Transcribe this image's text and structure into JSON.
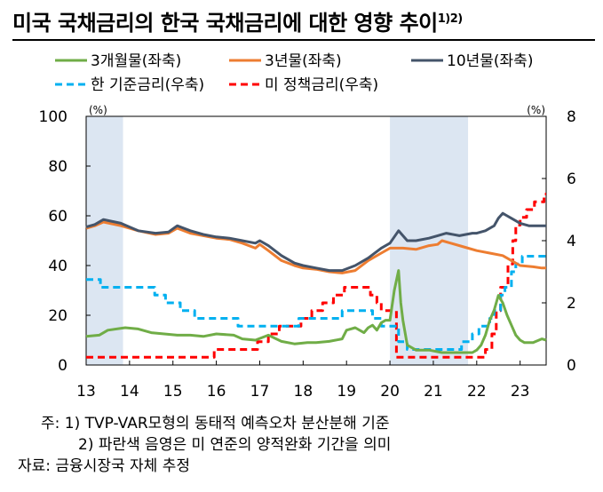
{
  "title": "미국 국채금리의 한국 국채금리에 대한 영향 추이",
  "title_sup": "1)2)",
  "notes": {
    "note1": "주:  1) TVP-VAR모형의 동태적 예측오차 분산분해 기준",
    "note2": "2) 파란색 음영은 미 연준의 양적완화 기간을 의미",
    "source": "자료:  금융시장국 자체 추정"
  },
  "chart_data": {
    "type": "line",
    "title": "미국 국채금리의 한국 국채금리에 대한 영향 추이",
    "left_axis": {
      "unit": "(%)",
      "ylim": [
        0,
        100
      ],
      "ticks": [
        0,
        20,
        40,
        60,
        80,
        100
      ]
    },
    "right_axis": {
      "unit": "(%)",
      "ylim": [
        0,
        8
      ],
      "ticks": [
        0,
        2,
        4,
        6,
        8
      ]
    },
    "x_axis": {
      "xlim": [
        2013.0,
        2023.6
      ],
      "ticks": [
        13,
        14,
        15,
        16,
        17,
        18,
        19,
        20,
        21,
        22,
        23
      ]
    },
    "shading": [
      {
        "from": 2013.0,
        "to": 2013.85
      },
      {
        "from": 2020.0,
        "to": 2021.8
      }
    ],
    "grid": false,
    "legend": "top",
    "series": [
      {
        "name": "3개월물(좌축)",
        "axis": "left",
        "color": "#70ad47",
        "style": "solid",
        "points": [
          [
            2013.0,
            11.5
          ],
          [
            2013.3,
            12
          ],
          [
            2013.5,
            14
          ],
          [
            2013.9,
            15
          ],
          [
            2014.2,
            14.5
          ],
          [
            2014.5,
            13
          ],
          [
            2014.8,
            12.5
          ],
          [
            2015.1,
            12
          ],
          [
            2015.4,
            12
          ],
          [
            2015.7,
            11.5
          ],
          [
            2016.0,
            12.5
          ],
          [
            2016.4,
            12
          ],
          [
            2016.6,
            10.5
          ],
          [
            2016.9,
            10
          ],
          [
            2017.2,
            12
          ],
          [
            2017.5,
            9.5
          ],
          [
            2017.8,
            8.5
          ],
          [
            2018.1,
            9
          ],
          [
            2018.3,
            9
          ],
          [
            2018.6,
            9.5
          ],
          [
            2018.9,
            10.5
          ],
          [
            2019.0,
            14
          ],
          [
            2019.2,
            15
          ],
          [
            2019.4,
            13
          ],
          [
            2019.5,
            15
          ],
          [
            2019.6,
            16
          ],
          [
            2019.7,
            14
          ],
          [
            2019.8,
            17
          ],
          [
            2019.9,
            18
          ],
          [
            2020.0,
            18
          ],
          [
            2020.1,
            30
          ],
          [
            2020.2,
            38
          ],
          [
            2020.25,
            25
          ],
          [
            2020.3,
            18
          ],
          [
            2020.4,
            8
          ],
          [
            2020.6,
            6
          ],
          [
            2020.9,
            6
          ],
          [
            2021.2,
            5
          ],
          [
            2021.6,
            5
          ],
          [
            2021.9,
            5
          ],
          [
            2022.0,
            6
          ],
          [
            2022.1,
            8
          ],
          [
            2022.2,
            12
          ],
          [
            2022.3,
            18
          ],
          [
            2022.4,
            22
          ],
          [
            2022.5,
            28
          ],
          [
            2022.6,
            25
          ],
          [
            2022.7,
            20
          ],
          [
            2022.8,
            16
          ],
          [
            2022.9,
            12
          ],
          [
            2023.0,
            10
          ],
          [
            2023.1,
            9
          ],
          [
            2023.3,
            9
          ],
          [
            2023.5,
            10.5
          ],
          [
            2023.6,
            10
          ]
        ]
      },
      {
        "name": "3년물(좌축)",
        "axis": "left",
        "color": "#ed7d31",
        "style": "solid",
        "points": [
          [
            2013.0,
            55
          ],
          [
            2013.2,
            56
          ],
          [
            2013.4,
            57.5
          ],
          [
            2013.8,
            56
          ],
          [
            2014.2,
            54
          ],
          [
            2014.6,
            52.5
          ],
          [
            2014.9,
            53
          ],
          [
            2015.1,
            55
          ],
          [
            2015.4,
            53
          ],
          [
            2015.7,
            52
          ],
          [
            2016.0,
            51
          ],
          [
            2016.3,
            50.5
          ],
          [
            2016.6,
            49
          ],
          [
            2016.9,
            47
          ],
          [
            2017.0,
            48.5
          ],
          [
            2017.2,
            46
          ],
          [
            2017.5,
            42
          ],
          [
            2017.8,
            40
          ],
          [
            2018.0,
            39
          ],
          [
            2018.3,
            38.5
          ],
          [
            2018.6,
            37.5
          ],
          [
            2018.9,
            37
          ],
          [
            2019.2,
            38
          ],
          [
            2019.5,
            42
          ],
          [
            2019.8,
            45
          ],
          [
            2020.0,
            47
          ],
          [
            2020.3,
            47
          ],
          [
            2020.6,
            46.5
          ],
          [
            2020.9,
            48
          ],
          [
            2021.1,
            48.5
          ],
          [
            2021.2,
            50
          ],
          [
            2021.4,
            49
          ],
          [
            2021.7,
            47.5
          ],
          [
            2022.0,
            46
          ],
          [
            2022.3,
            45
          ],
          [
            2022.6,
            44
          ],
          [
            2022.8,
            42
          ],
          [
            2023.0,
            40
          ],
          [
            2023.3,
            39.5
          ],
          [
            2023.5,
            39
          ],
          [
            2023.6,
            39
          ]
        ]
      },
      {
        "name": "10년물(좌축)",
        "axis": "left",
        "color": "#44546a",
        "style": "solid",
        "points": [
          [
            2013.0,
            55.5
          ],
          [
            2013.2,
            56.5
          ],
          [
            2013.4,
            58.5
          ],
          [
            2013.8,
            57
          ],
          [
            2014.2,
            54
          ],
          [
            2014.6,
            53
          ],
          [
            2014.9,
            53.5
          ],
          [
            2015.1,
            56
          ],
          [
            2015.4,
            54
          ],
          [
            2015.7,
            52.5
          ],
          [
            2016.0,
            51.5
          ],
          [
            2016.3,
            51
          ],
          [
            2016.6,
            50
          ],
          [
            2016.9,
            49
          ],
          [
            2017.0,
            50
          ],
          [
            2017.2,
            48
          ],
          [
            2017.5,
            44
          ],
          [
            2017.8,
            41
          ],
          [
            2018.0,
            40
          ],
          [
            2018.3,
            39
          ],
          [
            2018.6,
            38
          ],
          [
            2018.9,
            38
          ],
          [
            2019.2,
            40
          ],
          [
            2019.5,
            43
          ],
          [
            2019.8,
            47
          ],
          [
            2020.0,
            49
          ],
          [
            2020.2,
            54
          ],
          [
            2020.4,
            50
          ],
          [
            2020.6,
            50
          ],
          [
            2020.9,
            51
          ],
          [
            2021.1,
            52
          ],
          [
            2021.3,
            53
          ],
          [
            2021.6,
            52
          ],
          [
            2021.9,
            53
          ],
          [
            2022.0,
            53
          ],
          [
            2022.2,
            54
          ],
          [
            2022.4,
            56
          ],
          [
            2022.5,
            59
          ],
          [
            2022.6,
            61
          ],
          [
            2022.7,
            60
          ],
          [
            2022.8,
            59
          ],
          [
            2023.0,
            57
          ],
          [
            2023.2,
            56
          ],
          [
            2023.5,
            56
          ],
          [
            2023.6,
            56
          ]
        ]
      },
      {
        "name": "한 기준금리(우축)",
        "axis": "right",
        "color": "#00b0f0",
        "style": "dashed",
        "points": [
          [
            2013.0,
            2.75
          ],
          [
            2013.33,
            2.75
          ],
          [
            2013.33,
            2.5
          ],
          [
            2014.58,
            2.5
          ],
          [
            2014.58,
            2.25
          ],
          [
            2014.83,
            2.25
          ],
          [
            2014.83,
            2.0
          ],
          [
            2015.17,
            2.0
          ],
          [
            2015.17,
            1.75
          ],
          [
            2015.5,
            1.75
          ],
          [
            2015.5,
            1.5
          ],
          [
            2016.5,
            1.5
          ],
          [
            2016.5,
            1.25
          ],
          [
            2017.9,
            1.25
          ],
          [
            2017.9,
            1.5
          ],
          [
            2018.9,
            1.5
          ],
          [
            2018.9,
            1.75
          ],
          [
            2019.6,
            1.75
          ],
          [
            2019.6,
            1.5
          ],
          [
            2019.8,
            1.5
          ],
          [
            2019.8,
            1.25
          ],
          [
            2020.2,
            1.25
          ],
          [
            2020.2,
            0.75
          ],
          [
            2020.4,
            0.75
          ],
          [
            2020.4,
            0.5
          ],
          [
            2021.65,
            0.5
          ],
          [
            2021.65,
            0.75
          ],
          [
            2021.9,
            0.75
          ],
          [
            2021.9,
            1.0
          ],
          [
            2022.05,
            1.0
          ],
          [
            2022.05,
            1.25
          ],
          [
            2022.3,
            1.25
          ],
          [
            2022.3,
            1.5
          ],
          [
            2022.4,
            1.5
          ],
          [
            2022.4,
            1.75
          ],
          [
            2022.55,
            1.75
          ],
          [
            2022.55,
            2.25
          ],
          [
            2022.65,
            2.25
          ],
          [
            2022.65,
            2.5
          ],
          [
            2022.8,
            2.5
          ],
          [
            2022.8,
            3.0
          ],
          [
            2022.9,
            3.0
          ],
          [
            2022.9,
            3.25
          ],
          [
            2023.05,
            3.25
          ],
          [
            2023.05,
            3.5
          ],
          [
            2023.6,
            3.5
          ]
        ]
      },
      {
        "name": "미 정책금리(우축)",
        "axis": "right",
        "color": "#ff0000",
        "style": "dashed",
        "points": [
          [
            2013.0,
            0.25
          ],
          [
            2015.95,
            0.25
          ],
          [
            2015.95,
            0.5
          ],
          [
            2016.95,
            0.5
          ],
          [
            2016.95,
            0.75
          ],
          [
            2017.2,
            0.75
          ],
          [
            2017.2,
            1.0
          ],
          [
            2017.45,
            1.0
          ],
          [
            2017.45,
            1.25
          ],
          [
            2017.95,
            1.25
          ],
          [
            2017.95,
            1.5
          ],
          [
            2018.2,
            1.5
          ],
          [
            2018.2,
            1.75
          ],
          [
            2018.45,
            1.75
          ],
          [
            2018.45,
            2.0
          ],
          [
            2018.7,
            2.0
          ],
          [
            2018.7,
            2.25
          ],
          [
            2018.95,
            2.25
          ],
          [
            2018.95,
            2.5
          ],
          [
            2019.55,
            2.5
          ],
          [
            2019.55,
            2.25
          ],
          [
            2019.7,
            2.25
          ],
          [
            2019.7,
            2.0
          ],
          [
            2019.8,
            2.0
          ],
          [
            2019.8,
            1.75
          ],
          [
            2020.15,
            1.75
          ],
          [
            2020.15,
            0.25
          ],
          [
            2022.2,
            0.25
          ],
          [
            2022.2,
            0.5
          ],
          [
            2022.35,
            0.5
          ],
          [
            2022.35,
            1.0
          ],
          [
            2022.45,
            1.0
          ],
          [
            2022.45,
            1.75
          ],
          [
            2022.55,
            1.75
          ],
          [
            2022.55,
            2.5
          ],
          [
            2022.72,
            2.5
          ],
          [
            2022.72,
            3.25
          ],
          [
            2022.83,
            3.25
          ],
          [
            2022.83,
            4.0
          ],
          [
            2022.9,
            4.0
          ],
          [
            2022.9,
            4.5
          ],
          [
            2023.0,
            4.5
          ],
          [
            2023.0,
            4.75
          ],
          [
            2023.15,
            4.75
          ],
          [
            2023.15,
            5.0
          ],
          [
            2023.33,
            5.0
          ],
          [
            2023.33,
            5.25
          ],
          [
            2023.55,
            5.25
          ],
          [
            2023.55,
            5.5
          ],
          [
            2023.6,
            5.5
          ]
        ]
      }
    ]
  }
}
